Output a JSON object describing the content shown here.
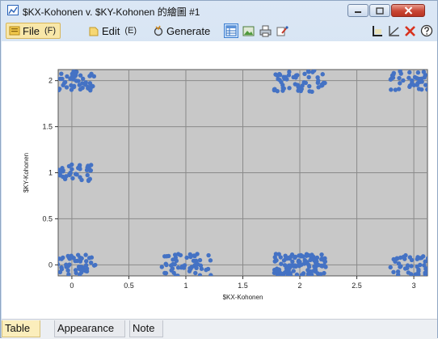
{
  "window": {
    "title": "$KX-Kohonen v. $KY-Kohonen 的繪圖 #1"
  },
  "menu": {
    "file_label": "File",
    "file_mnemonic": "(F)",
    "edit_label": "Edit",
    "edit_mnemonic": "(E)",
    "generate_label": "Generate"
  },
  "tabs": [
    {
      "label": "Table",
      "active": true
    },
    {
      "label": "Appearance",
      "active": false
    },
    {
      "label": "Note",
      "active": false
    }
  ],
  "icons": {
    "app": "scatterplot-icon",
    "toolbar": [
      "table-icon",
      "image-icon",
      "print-icon",
      "export-icon"
    ],
    "right": [
      "axis-icon",
      "line-tool-icon",
      "clear-x-icon",
      "help-icon"
    ]
  },
  "colors": {
    "points": "#4472c4",
    "plot_bg": "#c8c8c8",
    "grid": "#8a8a8a"
  },
  "chart_data": {
    "type": "scatter",
    "title": "",
    "xlabel": "$KX-Kohonen",
    "ylabel": "$KY-Kohonen",
    "xlim": [
      -0.12,
      3.12
    ],
    "ylim": [
      -0.12,
      2.12
    ],
    "xticks": [
      0,
      0.5,
      1,
      1.5,
      2,
      2.5,
      3
    ],
    "xtick_labels": [
      "0",
      "0.5",
      "1",
      "1.5",
      "2",
      "2.5",
      "3"
    ],
    "yticks": [
      0,
      0.5,
      1,
      1.5,
      2
    ],
    "ytick_labels": [
      "0",
      "0.5",
      "1",
      "1.5",
      "2"
    ],
    "grid": true,
    "clusters": [
      {
        "x": 0,
        "y": 0,
        "points": 60,
        "spread": 0.18
      },
      {
        "x": 1,
        "y": 0,
        "points": 55,
        "spread": 0.2
      },
      {
        "x": 2,
        "y": 0,
        "points": 110,
        "spread": 0.2
      },
      {
        "x": 3,
        "y": 0,
        "points": 55,
        "spread": 0.18
      },
      {
        "x": 0,
        "y": 1,
        "points": 45,
        "spread": 0.15
      },
      {
        "x": 0,
        "y": 2,
        "points": 60,
        "spread": 0.18
      },
      {
        "x": 2,
        "y": 2,
        "points": 55,
        "spread": 0.2
      },
      {
        "x": 3,
        "y": 2,
        "points": 50,
        "spread": 0.18
      }
    ]
  }
}
